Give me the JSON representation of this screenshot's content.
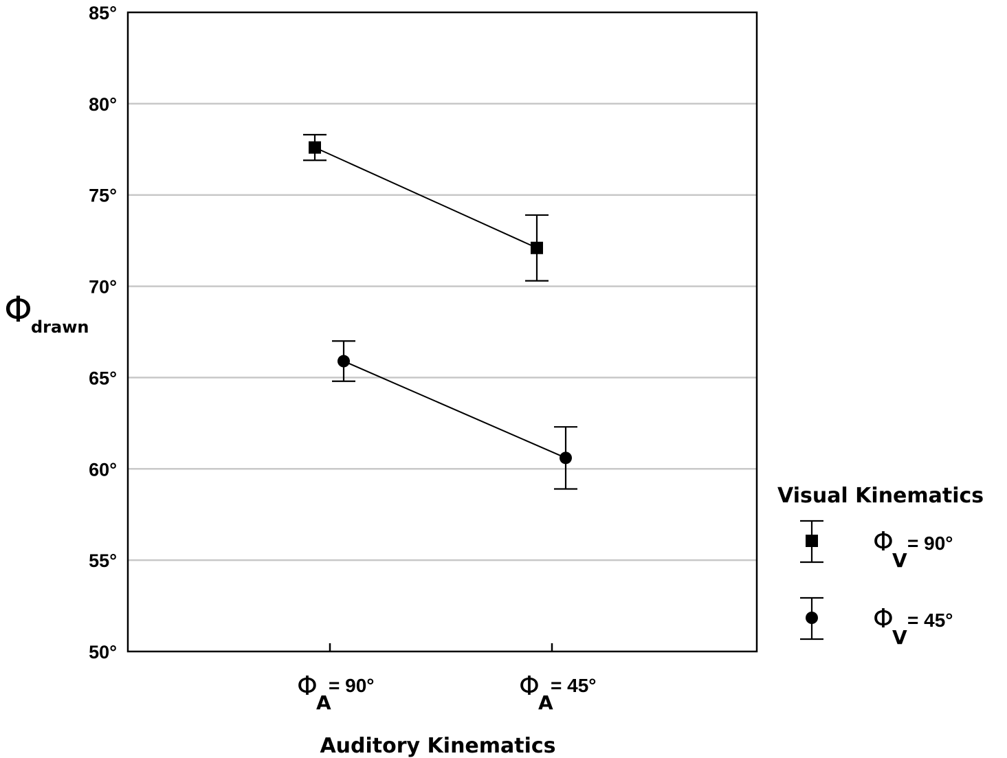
{
  "chart_data": {
    "type": "line",
    "xlabel": "Auditory Kinematics",
    "ylabel_symbol": "Φ",
    "ylabel_subscript": "drawn",
    "ylim": [
      50,
      85
    ],
    "yticks": [
      {
        "value": 50,
        "label": "50°"
      },
      {
        "value": 55,
        "label": "55°"
      },
      {
        "value": 60,
        "label": "60°"
      },
      {
        "value": 65,
        "label": "65°"
      },
      {
        "value": 70,
        "label": "70°"
      },
      {
        "value": 75,
        "label": "75°"
      },
      {
        "value": 80,
        "label": "80°"
      },
      {
        "value": 85,
        "label": "85°"
      }
    ],
    "grid": "horizontal",
    "categories": [
      {
        "symbol": "Φ",
        "subscript": "A",
        "value_label": "= 90°"
      },
      {
        "symbol": "Φ",
        "subscript": "A",
        "value_label": "= 45°"
      }
    ],
    "legend": {
      "title": "Visual Kinematics",
      "placement": "right"
    },
    "series": [
      {
        "name_symbol": "Φ",
        "name_subscript": "V",
        "name_value": "= 90°",
        "marker": "square",
        "values": [
          77.6,
          72.1
        ],
        "error_low": [
          76.9,
          70.3
        ],
        "error_high": [
          78.3,
          73.9
        ]
      },
      {
        "name_symbol": "Φ",
        "name_subscript": "V",
        "name_value": "= 45°",
        "marker": "circle",
        "values": [
          65.9,
          60.6
        ],
        "error_low": [
          64.8,
          58.9
        ],
        "error_high": [
          67.0,
          62.3
        ]
      }
    ]
  }
}
